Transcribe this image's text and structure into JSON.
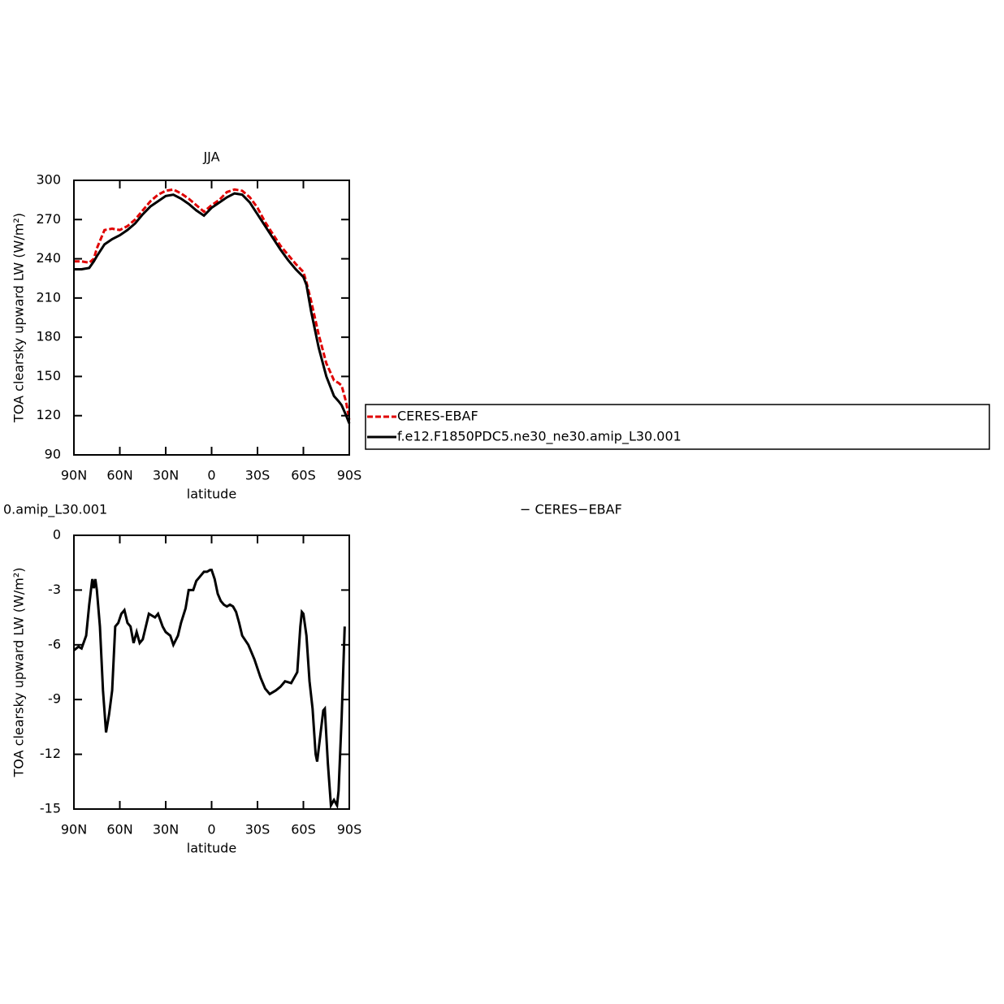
{
  "chart_data": [
    {
      "type": "line",
      "title": "JJA",
      "x_label": "latitude",
      "y_label": "TOA clearsky upward LW (W/m²)",
      "legend": "right",
      "x": [
        90,
        85,
        80,
        77,
        75,
        70,
        65,
        60,
        55,
        50,
        45,
        40,
        35,
        30,
        25,
        20,
        15,
        10,
        5,
        0,
        -5,
        -10,
        -15,
        -20,
        -25,
        -30,
        -35,
        -40,
        -45,
        -50,
        -55,
        -60,
        -62,
        -65,
        -70,
        -75,
        -80,
        -83,
        -85,
        -88,
        -90
      ],
      "series": [
        {
          "name": "CERES-EBAF",
          "color": "#e00000",
          "dash": true,
          "values": [
            238,
            238,
            237,
            240,
            248,
            262,
            263,
            262,
            265,
            270,
            277,
            284,
            289,
            292,
            293,
            290,
            286,
            281,
            276,
            281,
            285,
            291,
            293,
            292,
            287,
            279,
            268,
            259,
            250,
            243,
            236,
            230,
            222,
            208,
            182,
            160,
            147,
            145,
            143,
            130,
            117
          ]
        },
        {
          "name": "f.e12.F1850PDC5.ne30_ne30.amip_L30.001",
          "color": "#000000",
          "dash": false,
          "values": [
            232,
            232,
            233,
            238,
            242,
            251,
            255,
            258,
            262,
            267,
            274,
            280,
            284,
            288,
            289,
            286,
            282,
            277,
            273,
            279,
            283,
            287,
            290,
            289,
            283,
            274,
            265,
            256,
            247,
            239,
            232,
            226,
            220,
            200,
            172,
            150,
            135,
            131,
            128,
            120,
            114
          ]
        }
      ],
      "xlim": [
        90,
        -90
      ],
      "xticks": [
        {
          "value": 90,
          "label": "90N"
        },
        {
          "value": 60,
          "label": "60N"
        },
        {
          "value": 30,
          "label": "30N"
        },
        0,
        {
          "value": -30,
          "label": "30S"
        },
        {
          "value": -60,
          "label": "60S"
        },
        {
          "value": -90,
          "label": "90S"
        }
      ],
      "ylim": [
        90,
        300
      ],
      "yticks": [
        90,
        120,
        150,
        180,
        210,
        240,
        270,
        300
      ]
    },
    {
      "type": "line",
      "title_left": "0.amip_L30.001",
      "title_right": "− CERES−EBAF",
      "x_label": "latitude",
      "y_label": "TOA clearsky upward LW (W/m²)",
      "x": [
        90,
        87,
        85,
        82,
        80,
        78,
        77,
        76,
        75,
        73,
        71,
        69,
        67,
        65,
        63,
        61,
        59,
        57,
        55,
        53,
        51,
        49,
        47,
        45,
        43,
        41,
        39,
        37,
        35,
        32,
        30,
        27,
        25,
        22,
        20,
        17,
        15,
        12,
        10,
        8,
        5,
        3,
        1,
        0,
        -2,
        -4,
        -6,
        -8,
        -10,
        -12,
        -14,
        -16,
        -18,
        -20,
        -24,
        -28,
        -32,
        -35,
        -38,
        -42,
        -45,
        -48,
        -52,
        -56,
        -58,
        -59,
        -60,
        -62,
        -64,
        -66,
        -68,
        -69,
        -71,
        -73,
        -74,
        -76,
        -78,
        -80,
        -82,
        -83,
        -85,
        -87
      ],
      "series": [
        {
          "color": "#000000",
          "dash": false,
          "values": [
            -6.3,
            -6.1,
            -6.2,
            -5.5,
            -3.8,
            -2.4,
            -2.9,
            -2.4,
            -3.0,
            -5,
            -8.5,
            -10.8,
            -9.8,
            -8.5,
            -5,
            -4.8,
            -4.3,
            -4.1,
            -4.8,
            -5.0,
            -5.9,
            -5.3,
            -5.9,
            -5.7,
            -5.0,
            -4.3,
            -4.4,
            -4.5,
            -4.3,
            -5.0,
            -5.3,
            -5.5,
            -6.0,
            -5.5,
            -4.8,
            -4.0,
            -3.0,
            -3.0,
            -2.5,
            -2.3,
            -2.0,
            -2.0,
            -1.9,
            -1.9,
            -2.4,
            -3.2,
            -3.6,
            -3.8,
            -3.9,
            -3.8,
            -3.9,
            -4.2,
            -4.8,
            -5.5,
            -6.0,
            -6.8,
            -7.8,
            -8.4,
            -8.7,
            -8.5,
            -8.3,
            -8.0,
            -8.1,
            -7.5,
            -5.0,
            -4.2,
            -4.3,
            -5.5,
            -8.0,
            -9.5,
            -12.0,
            -12.4,
            -11.0,
            -9.6,
            -9.5,
            -12.5,
            -14.8,
            -14.5,
            -14.8,
            -14.0,
            -10,
            -5.0
          ]
        }
      ],
      "xlim": [
        90,
        -90
      ],
      "xticks": [
        {
          "value": 90,
          "label": "90N"
        },
        {
          "value": 60,
          "label": "60N"
        },
        {
          "value": 30,
          "label": "30N"
        },
        0,
        {
          "value": -30,
          "label": "30S"
        },
        {
          "value": -60,
          "label": "60S"
        },
        {
          "value": -90,
          "label": "90S"
        }
      ],
      "ylim": [
        -15,
        0
      ],
      "yticks": [
        -15,
        -12,
        -9,
        -6,
        -3,
        0
      ]
    }
  ]
}
